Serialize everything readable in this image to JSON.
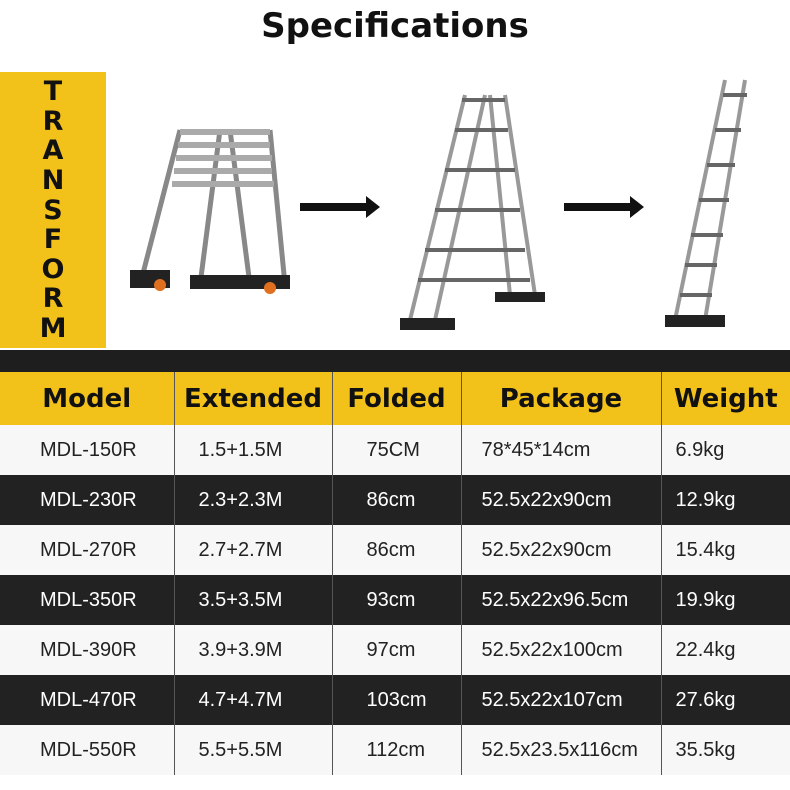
{
  "title": "Specifications",
  "banner_letters": [
    "T",
    "R",
    "A",
    "N",
    "S",
    "F",
    "O",
    "R",
    "M"
  ],
  "accent_color": "#f2c21b",
  "table": {
    "headers": [
      "Model",
      "Extended",
      "Folded",
      "Package",
      "Weight"
    ],
    "rows": [
      [
        "MDL-150R",
        "1.5+1.5M",
        "75CM",
        "78*45*14cm",
        "6.9kg"
      ],
      [
        "MDL-230R",
        "2.3+2.3M",
        "86cm",
        "52.5x22x90cm",
        "12.9kg"
      ],
      [
        "MDL-270R",
        "2.7+2.7M",
        "86cm",
        "52.5x22x90cm",
        "15.4kg"
      ],
      [
        "MDL-350R",
        "3.5+3.5M",
        "93cm",
        "52.5x22x96.5cm",
        "19.9kg"
      ],
      [
        "MDL-390R",
        "3.9+3.9M",
        "97cm",
        "52.5x22x100cm",
        "22.4kg"
      ],
      [
        "MDL-470R",
        "4.7+4.7M",
        "103cm",
        "52.5x22x107cm",
        "27.6kg"
      ],
      [
        "MDL-550R",
        "5.5+5.5M",
        "112cm",
        "52.5x23.5x116cm",
        "35.5kg"
      ]
    ]
  }
}
